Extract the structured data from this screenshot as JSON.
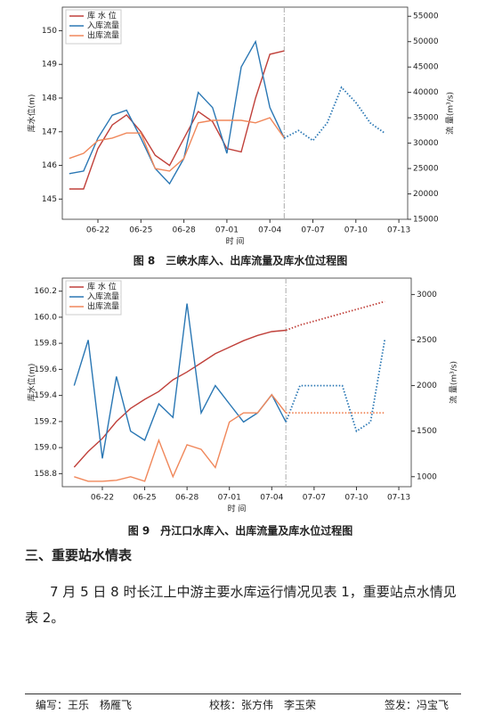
{
  "chart_data": [
    {
      "type": "line",
      "title": "图 8　三峡水库入、出库流量及库水位过程图",
      "xlabel": "时 间",
      "ylabel": "库水位(m)",
      "y2label": "流 量(m³/s)",
      "legend": "upper left",
      "x": [
        "06-19",
        "06-20",
        "06-21",
        "06-22",
        "06-23",
        "06-24",
        "06-25",
        "06-26",
        "06-27",
        "06-28",
        "06-29",
        "06-30",
        "07-01",
        "07-02",
        "07-03",
        "07-04",
        "07-05",
        "07-06",
        "07-07",
        "07-08",
        "07-09",
        "07-10",
        "07-11",
        "07-12",
        "07-13"
      ],
      "xticks": [
        "06-22",
        "06-25",
        "06-28",
        "07-01",
        "07-04",
        "07-07",
        "07-10",
        "07-13"
      ],
      "vline": "07-05",
      "ylim": [
        144.4,
        150.7
      ],
      "yticks": [
        145,
        146,
        147,
        148,
        149,
        150
      ],
      "y2lim": [
        15000,
        56800
      ],
      "y2ticks": [
        15000,
        20000,
        25000,
        30000,
        35000,
        40000,
        45000,
        50000,
        55000
      ],
      "series": [
        {
          "name": "库 水 位",
          "color": "#c0403a",
          "values": [
            null,
            145.3,
            145.3,
            146.5,
            147.2,
            147.5,
            147.0,
            146.3,
            146.0,
            146.8,
            147.6,
            147.3,
            146.5,
            146.4,
            148.0,
            149.3,
            149.4,
            null,
            null,
            null,
            null,
            null,
            null,
            null,
            null
          ]
        },
        {
          "name": "入库流量",
          "color": "#2a77b4",
          "axis": "y2",
          "values": [
            null,
            24000,
            24500,
            31000,
            35500,
            36500,
            31000,
            25000,
            22000,
            27000,
            40000,
            37000,
            28000,
            45000,
            50000,
            37000,
            31000,
            null,
            null,
            null,
            null,
            null,
            null,
            null,
            null
          ]
        },
        {
          "name": "出库流量",
          "color": "#f0875a",
          "axis": "y2",
          "values": [
            null,
            27000,
            28000,
            30500,
            31000,
            32000,
            32000,
            25000,
            24500,
            27000,
            34000,
            34500,
            34500,
            34500,
            34000,
            35000,
            31000,
            null,
            null,
            null,
            null,
            null,
            null,
            null,
            null
          ]
        },
        {
          "color": "#2a77b4",
          "axis": "y2",
          "linestyle": "dotted",
          "values": [
            null,
            null,
            null,
            null,
            null,
            null,
            null,
            null,
            null,
            null,
            null,
            null,
            null,
            null,
            null,
            null,
            31000,
            32500,
            30500,
            34000,
            41000,
            38000,
            34000,
            32000,
            null
          ]
        }
      ]
    },
    {
      "type": "line",
      "title": "图 9　丹江口水库入、出库流量及库水位过程图",
      "xlabel": "时 间",
      "ylabel": "库水位(m)",
      "y2label": "流 量(m³/s)",
      "legend": "upper left",
      "x": [
        "06-19",
        "06-20",
        "06-21",
        "06-22",
        "06-23",
        "06-24",
        "06-25",
        "06-26",
        "06-27",
        "06-28",
        "06-29",
        "06-30",
        "07-01",
        "07-02",
        "07-03",
        "07-04",
        "07-05",
        "07-06",
        "07-07",
        "07-08",
        "07-09",
        "07-10",
        "07-11",
        "07-12",
        "07-13"
      ],
      "xticks": [
        "06-22",
        "06-25",
        "06-28",
        "07-01",
        "07-04",
        "07-07",
        "07-10",
        "07-13"
      ],
      "vline": "07-05",
      "ylim": [
        158.7,
        160.3
      ],
      "yticks": [
        158.8,
        {
          "value": 159,
          "label": "159.0"
        },
        159.2,
        159.4,
        159.6,
        159.8,
        {
          "value": 160,
          "label": "160.0"
        },
        160.2
      ],
      "y2lim": [
        890,
        3180
      ],
      "y2ticks": [
        1000,
        1500,
        2000,
        2500,
        3000
      ],
      "series": [
        {
          "name": "库 水 位",
          "color": "#c0403a",
          "values": [
            null,
            158.85,
            158.97,
            159.07,
            159.2,
            159.3,
            159.37,
            159.43,
            159.52,
            159.58,
            159.65,
            159.72,
            159.77,
            159.82,
            159.86,
            159.89,
            159.9,
            null,
            null,
            null,
            null,
            null,
            null,
            null,
            null
          ]
        },
        {
          "name": "入库流量",
          "color": "#2a77b4",
          "axis": "y2",
          "values": [
            null,
            2000,
            2500,
            1200,
            2100,
            1500,
            1400,
            1800,
            1650,
            2900,
            1700,
            2000,
            1800,
            1600,
            1700,
            1900,
            1600,
            null,
            null,
            null,
            null,
            null,
            null,
            null,
            null
          ]
        },
        {
          "name": "出库流量",
          "color": "#f0875a",
          "axis": "y2",
          "values": [
            null,
            1000,
            950,
            950,
            960,
            1000,
            950,
            1400,
            1000,
            1350,
            1300,
            1100,
            1600,
            1700,
            1700,
            1900,
            1700,
            null,
            null,
            null,
            null,
            null,
            null,
            null,
            null
          ]
        },
        {
          "color": "#c0403a",
          "linestyle": "dotted",
          "values": [
            null,
            null,
            null,
            null,
            null,
            null,
            null,
            null,
            null,
            null,
            null,
            null,
            null,
            null,
            null,
            null,
            159.9,
            159.94,
            159.97,
            160.0,
            160.03,
            160.06,
            160.09,
            160.12,
            null
          ]
        },
        {
          "color": "#2a77b4",
          "axis": "y2",
          "linestyle": "dotted",
          "values": [
            null,
            null,
            null,
            null,
            null,
            null,
            null,
            null,
            null,
            null,
            null,
            null,
            null,
            null,
            null,
            null,
            1600,
            2000,
            2000,
            2000,
            2000,
            1500,
            1600,
            2500,
            null
          ]
        },
        {
          "color": "#f0875a",
          "axis": "y2",
          "linestyle": "dotted",
          "values": [
            null,
            null,
            null,
            null,
            null,
            null,
            null,
            null,
            null,
            null,
            null,
            null,
            null,
            null,
            null,
            null,
            1700,
            1700,
            1700,
            1700,
            1700,
            1700,
            1700,
            1700,
            null
          ]
        }
      ]
    }
  ],
  "section": {
    "heading": "三、重要站水情表",
    "paragraph": "7 月 5 日 8 时长江上中游主要水库运行情况见表 1，重要站点水情见表 2。"
  },
  "footer": {
    "writer": "编写：王乐　杨雁飞",
    "reviewer": "校核：张方伟　李玉荣",
    "approver": "签发：冯宝飞"
  }
}
